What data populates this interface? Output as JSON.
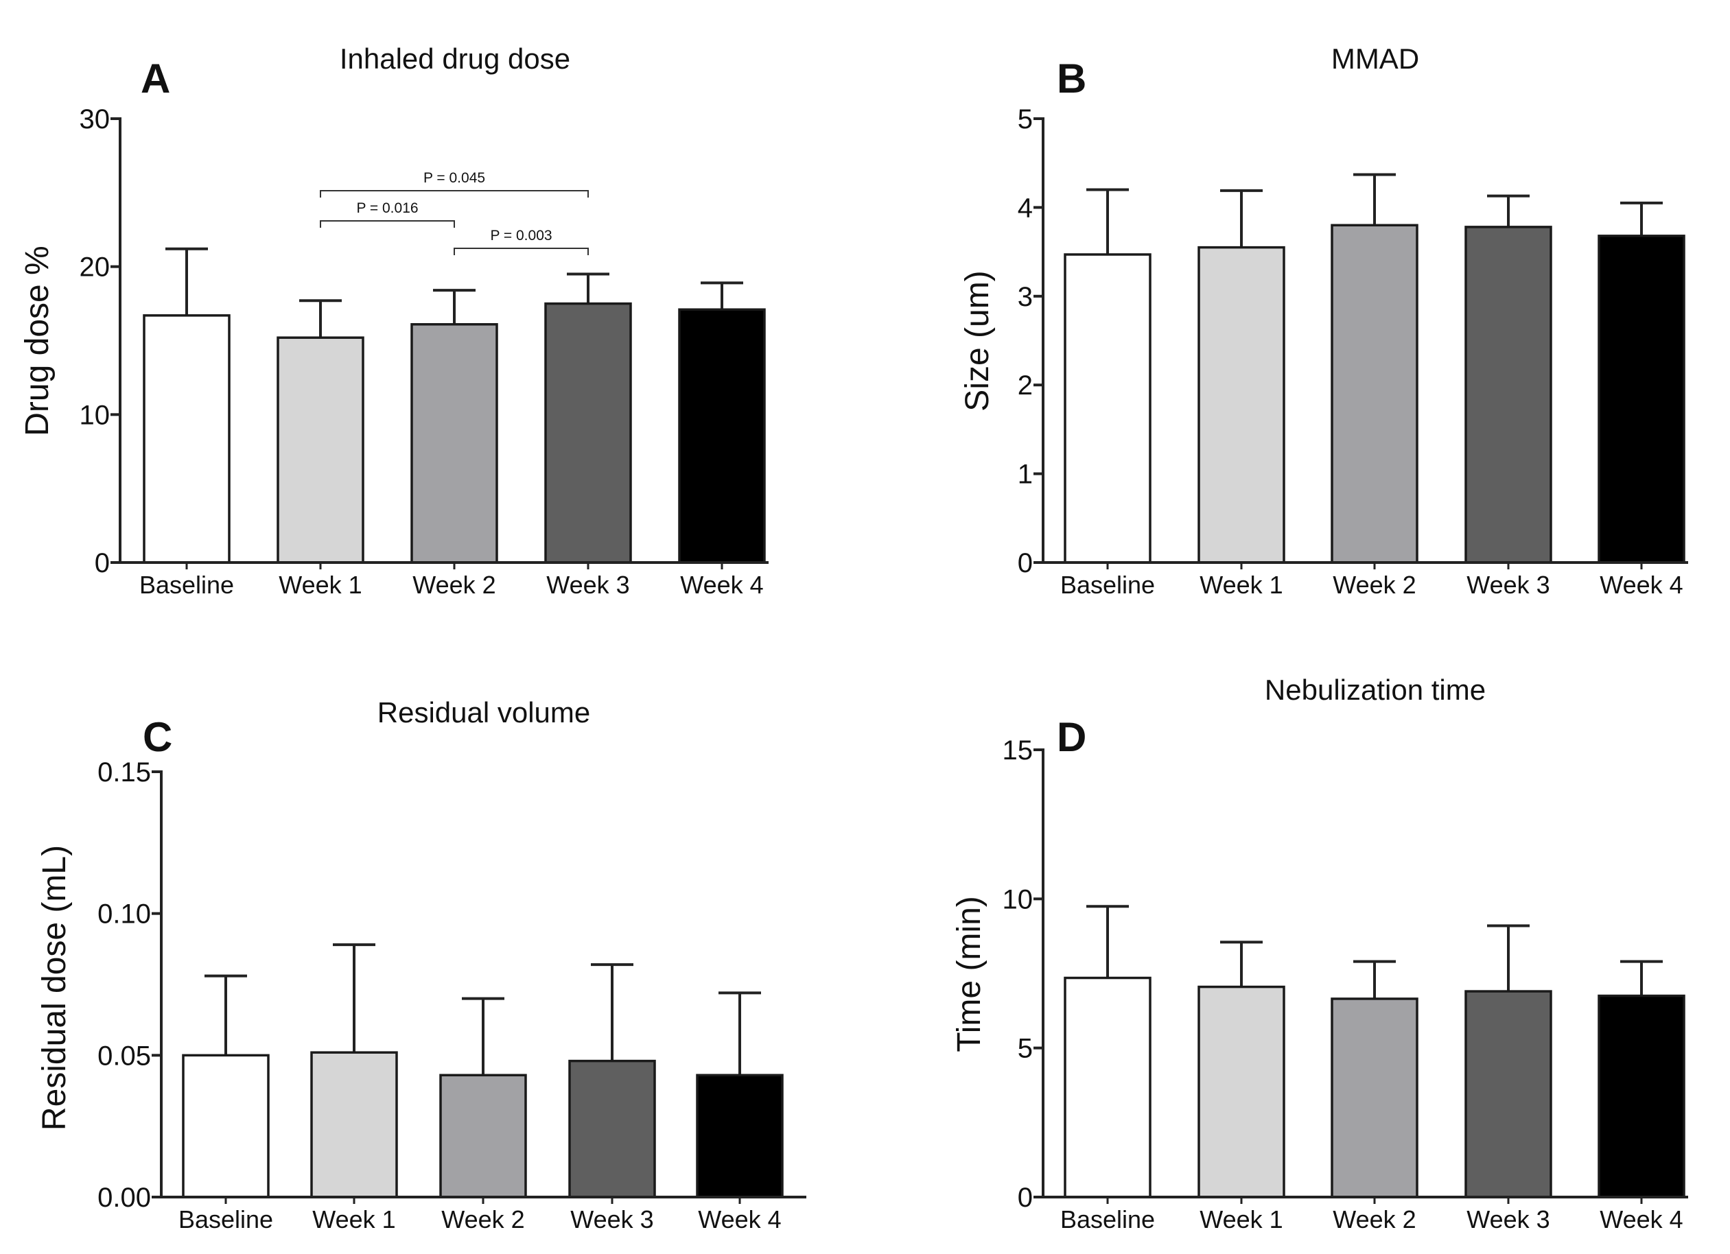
{
  "bar_colors": [
    "#ffffff",
    "#d6d6d6",
    "#a2a2a5",
    "#5f5f5f",
    "#000000"
  ],
  "chart_data": [
    {
      "panel": "A",
      "type": "bar",
      "title": "Inhaled drug dose",
      "xlabel": "",
      "ylabel": "Drug dose %",
      "ylim": [
        0,
        30
      ],
      "yticks": [
        0,
        10,
        20,
        30
      ],
      "ytick_labels": [
        "0",
        "10",
        "20",
        "30"
      ],
      "categories": [
        "Baseline",
        "Week 1",
        "Week 2",
        "Week 3",
        "Week 4"
      ],
      "values": [
        16.7,
        15.2,
        16.1,
        17.5,
        17.1
      ],
      "errors": [
        4.5,
        2.5,
        2.3,
        2.0,
        1.8
      ],
      "annotations": [
        {
          "from": 1,
          "to": 3,
          "label": "P = 0.045"
        },
        {
          "from": 1,
          "to": 2,
          "label": "P = 0.016"
        },
        {
          "from": 2,
          "to": 3,
          "label": "P = 0.003"
        }
      ]
    },
    {
      "panel": "B",
      "type": "bar",
      "title": "MMAD",
      "xlabel": "",
      "ylabel": "Size (um)",
      "ylim": [
        0,
        5
      ],
      "yticks": [
        0,
        1,
        2,
        3,
        4,
        5
      ],
      "ytick_labels": [
        "0",
        "1",
        "2",
        "3",
        "4",
        "5"
      ],
      "categories": [
        "Baseline",
        "Week 1",
        "Week 2",
        "Week 3",
        "Week 4"
      ],
      "values": [
        3.47,
        3.55,
        3.8,
        3.78,
        3.68
      ],
      "errors": [
        0.73,
        0.64,
        0.57,
        0.35,
        0.37
      ],
      "annotations": []
    },
    {
      "panel": "C",
      "type": "bar",
      "title": "Residual volume",
      "xlabel": "",
      "ylabel": "Residual dose (mL)",
      "ylim": [
        0,
        0.15
      ],
      "yticks": [
        0,
        0.05,
        0.1,
        0.15
      ],
      "ytick_labels": [
        "0.00",
        "0.05",
        "0.10",
        "0.15"
      ],
      "categories": [
        "Baseline",
        "Week 1",
        "Week 2",
        "Week 3",
        "Week 4"
      ],
      "values": [
        0.05,
        0.051,
        0.043,
        0.048,
        0.043
      ],
      "errors": [
        0.028,
        0.038,
        0.027,
        0.034,
        0.029
      ],
      "annotations": []
    },
    {
      "panel": "D",
      "type": "bar",
      "title": "Nebulization time",
      "xlabel": "",
      "ylabel": "Time (min)",
      "ylim": [
        0,
        15
      ],
      "yticks": [
        0,
        5,
        10,
        15
      ],
      "ytick_labels": [
        "0",
        "5",
        "10",
        "15"
      ],
      "categories": [
        "Baseline",
        "Week 1",
        "Week 2",
        "Week 3",
        "Week 4"
      ],
      "values": [
        7.35,
        7.05,
        6.65,
        6.9,
        6.75
      ],
      "errors": [
        2.4,
        1.5,
        1.25,
        2.2,
        1.15
      ],
      "annotations": []
    }
  ]
}
